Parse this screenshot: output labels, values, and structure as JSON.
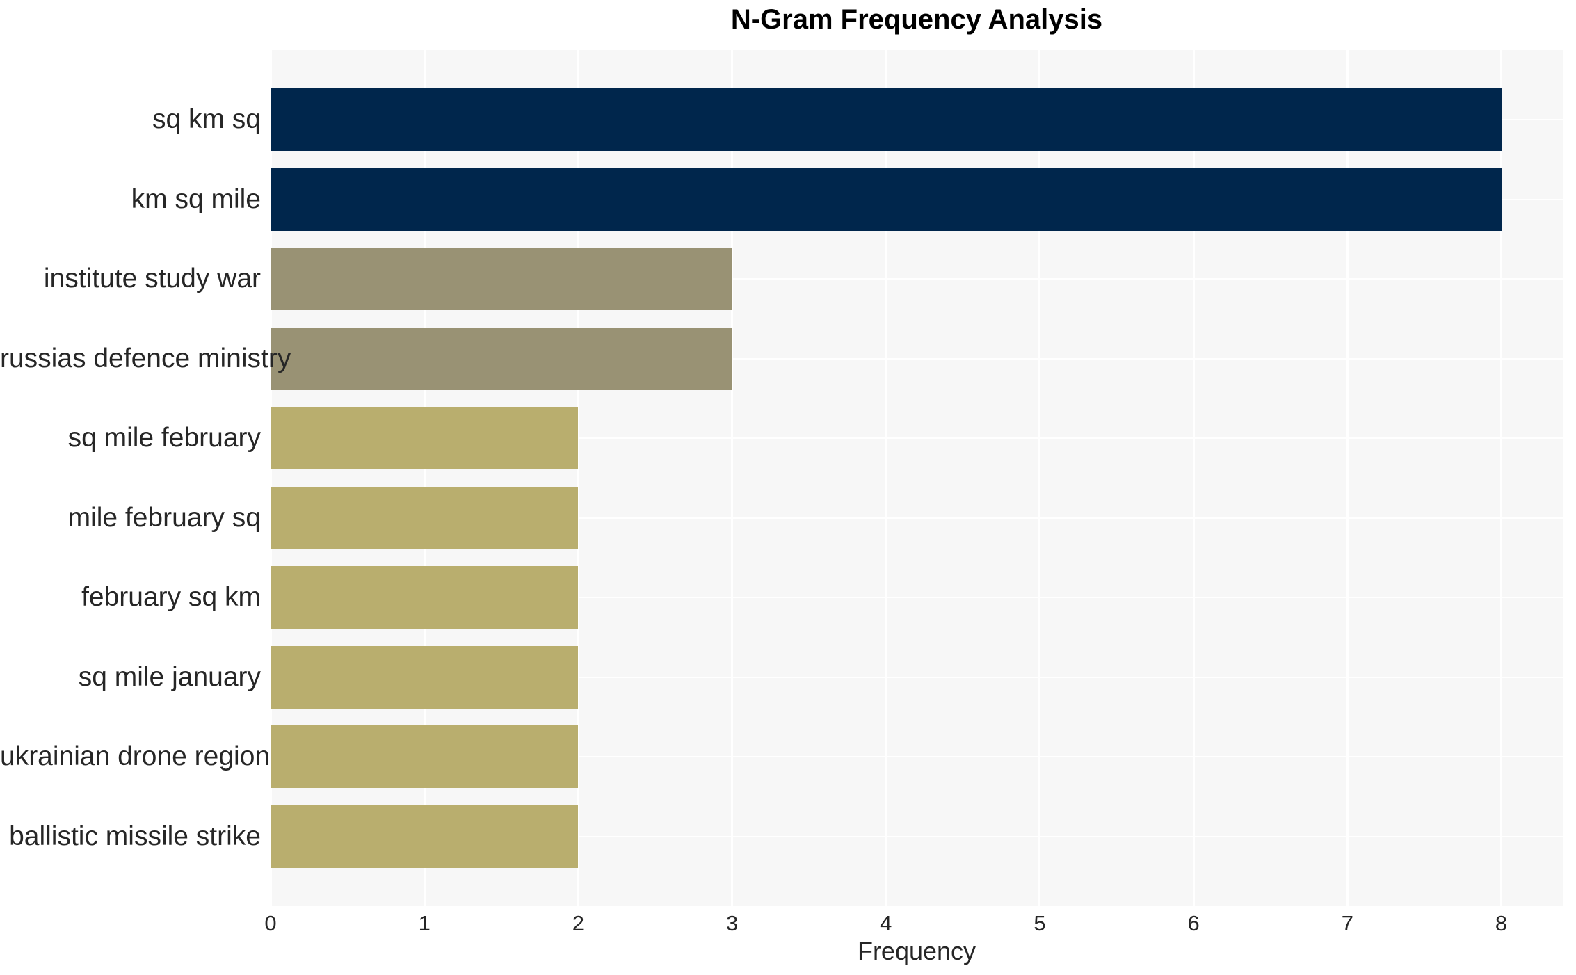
{
  "chart_data": {
    "type": "bar",
    "orientation": "horizontal",
    "title": "N-Gram Frequency Analysis",
    "xlabel": "Frequency",
    "ylabel": "",
    "xlim": [
      0,
      8.4
    ],
    "xticks": [
      0,
      1,
      2,
      3,
      4,
      5,
      6,
      7,
      8
    ],
    "grid": true,
    "legend": false,
    "categories": [
      "sq km sq",
      "km sq mile",
      "institute study war",
      "russias defence ministry",
      "sq mile february",
      "mile february sq",
      "february sq km",
      "sq mile january",
      "ukrainian drone region",
      "ballistic missile strike"
    ],
    "values": [
      8,
      8,
      3,
      3,
      2,
      2,
      2,
      2,
      2,
      2
    ],
    "bar_colors": [
      "#00264c",
      "#00264c",
      "#999274",
      "#999274",
      "#b9ae6e",
      "#b9ae6e",
      "#b9ae6e",
      "#b9ae6e",
      "#b9ae6e",
      "#b9ae6e"
    ]
  },
  "colors": {
    "navy": "#00264c",
    "olive": "#999274",
    "khaki": "#b9ae6e",
    "plot_background": "#f7f7f7",
    "gridline": "#ffffff",
    "tick_text": "#262626",
    "title_text": "#000000"
  }
}
